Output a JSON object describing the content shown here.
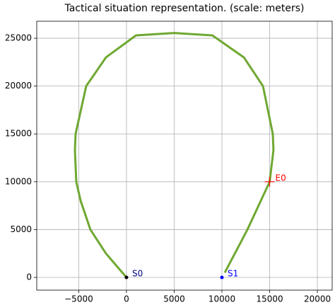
{
  "chart_data": {
    "type": "line",
    "title": "Tactical situation representation. (scale: meters)",
    "xlim": [
      -9400,
      21550
    ],
    "ylim": [
      -1330,
      26780
    ],
    "xticks": [
      {
        "value": -5000,
        "label": "−5000"
      },
      0,
      5000,
      10000,
      15000,
      20000
    ],
    "yticks": [
      0,
      5000,
      10000,
      15000,
      20000,
      25000
    ],
    "grid": true,
    "series": [
      {
        "color": "#6fa832",
        "x": [
          0,
          -2150,
          -3780,
          -4800,
          -5260,
          -5400,
          -5330,
          -4220,
          -2150,
          1000,
          5000,
          9000,
          12300,
          14300,
          15330,
          15400,
          15000,
          12670,
          10300
        ],
        "y": [
          0,
          2500,
          5000,
          8000,
          10000,
          13300,
          15000,
          20000,
          23000,
          25300,
          25550,
          25300,
          23000,
          20000,
          15000,
          13300,
          10000,
          5000,
          500
        ]
      }
    ],
    "points": [
      {
        "label": "S0",
        "x": 0,
        "y": 0,
        "color": "#000000",
        "label_color": "#000080",
        "marker": "dot"
      },
      {
        "label": "S1",
        "x": 10000,
        "y": 0,
        "color": "#0000ff",
        "label_color": "#0000ff",
        "marker": "dot"
      },
      {
        "label": "E0",
        "x": 15000,
        "y": 10000,
        "color": "#ff0000",
        "label_color": "#ff0000",
        "marker": "plus"
      }
    ]
  }
}
